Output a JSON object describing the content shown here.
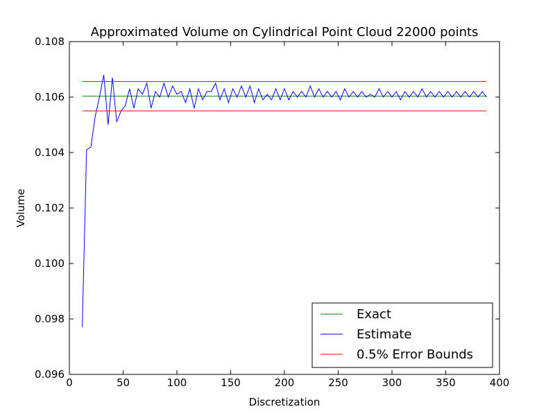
{
  "chart_data": {
    "type": "line",
    "title": "Approximated Volume on Cylindrical Point Cloud 22000 points",
    "xlabel": "Discretization",
    "ylabel": "Volume",
    "xlim": [
      0,
      400
    ],
    "ylim": [
      0.096,
      0.108
    ],
    "xticks": [
      0,
      50,
      100,
      150,
      200,
      250,
      300,
      350,
      400
    ],
    "yticks": [
      0.096,
      0.098,
      0.1,
      0.102,
      0.104,
      0.106,
      0.108
    ],
    "xtick_labels": [
      "0",
      "50",
      "100",
      "150",
      "200",
      "250",
      "300",
      "350",
      "400"
    ],
    "ytick_labels": [
      "0.096",
      "0.098",
      "0.100",
      "0.102",
      "0.104",
      "0.106",
      "0.108"
    ],
    "grid": false,
    "legend_position": "lower-right",
    "series": [
      {
        "name": "Exact",
        "color": "#008000",
        "x": [
          12,
          388
        ],
        "y": [
          0.10603,
          0.10603
        ]
      },
      {
        "name": "Estimate",
        "color": "#0000ff",
        "x": [
          12,
          16,
          20,
          24,
          28,
          32,
          36,
          40,
          44,
          48,
          52,
          56,
          60,
          64,
          68,
          72,
          76,
          80,
          84,
          88,
          92,
          96,
          100,
          104,
          108,
          112,
          116,
          120,
          124,
          128,
          132,
          136,
          140,
          144,
          148,
          152,
          156,
          160,
          164,
          168,
          172,
          176,
          180,
          184,
          188,
          192,
          196,
          200,
          204,
          208,
          212,
          216,
          220,
          224,
          228,
          232,
          236,
          240,
          244,
          248,
          252,
          256,
          260,
          264,
          268,
          272,
          276,
          280,
          284,
          288,
          292,
          296,
          300,
          304,
          308,
          312,
          316,
          320,
          324,
          328,
          332,
          336,
          340,
          344,
          348,
          352,
          356,
          360,
          364,
          368,
          372,
          376,
          380,
          384,
          388
        ],
        "y": [
          0.0977,
          0.1041,
          0.1042,
          0.1053,
          0.106,
          0.1068,
          0.105,
          0.1067,
          0.1051,
          0.1055,
          0.1057,
          0.1063,
          0.1056,
          0.1063,
          0.1061,
          0.1065,
          0.1056,
          0.1062,
          0.106,
          0.1065,
          0.106,
          0.1064,
          0.1061,
          0.1062,
          0.1058,
          0.1063,
          0.1056,
          0.1063,
          0.1059,
          0.1062,
          0.1062,
          0.1065,
          0.1059,
          0.1063,
          0.1058,
          0.1063,
          0.106,
          0.1064,
          0.106,
          0.1064,
          0.1058,
          0.1063,
          0.1059,
          0.1061,
          0.1059,
          0.1063,
          0.1059,
          0.1063,
          0.1059,
          0.1062,
          0.106,
          0.1062,
          0.106,
          0.1064,
          0.106,
          0.1063,
          0.106,
          0.1062,
          0.106,
          0.1062,
          0.1059,
          0.1063,
          0.106,
          0.1062,
          0.106,
          0.1062,
          0.106,
          0.1061,
          0.106,
          0.1063,
          0.106,
          0.1062,
          0.106,
          0.1062,
          0.1059,
          0.1062,
          0.106,
          0.1062,
          0.106,
          0.1063,
          0.106,
          0.1062,
          0.106,
          0.1062,
          0.106,
          0.1062,
          0.106,
          0.1062,
          0.106,
          0.1062,
          0.106,
          0.1062,
          0.106,
          0.1062,
          0.106
        ]
      },
      {
        "name": "0.5% Error Bounds",
        "color": "#ff0000",
        "x": [
          12,
          388
        ],
        "y": [
          0.10656,
          0.1055
        ]
      }
    ]
  }
}
